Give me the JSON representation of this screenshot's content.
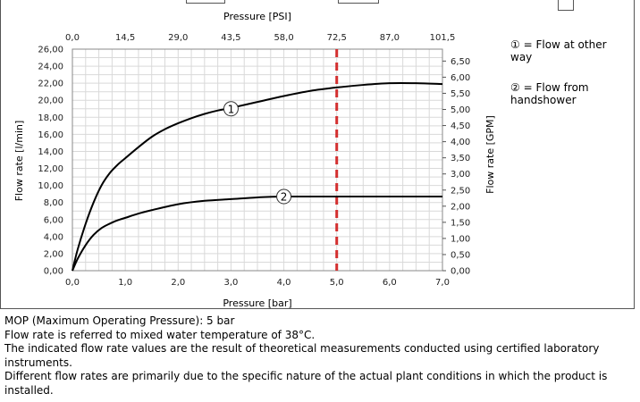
{
  "chart_data": {
    "type": "line",
    "top_axis": {
      "label": "Pressure [PSI]",
      "ticks": [
        "0,0",
        "14,5",
        "29,0",
        "43,5",
        "58,0",
        "72,5",
        "87,0",
        "101,5"
      ],
      "range": [
        0,
        101.5
      ]
    },
    "xlabel": "Pressure [bar]",
    "x_ticks": [
      "0,0",
      "1,0",
      "2,0",
      "3,0",
      "4,0",
      "5,0",
      "6,0",
      "7,0"
    ],
    "xlim": [
      0,
      7
    ],
    "ylabel": "Flow rate [l/min]",
    "y_ticks": [
      "0,00",
      "2,00",
      "4,00",
      "6,00",
      "8,00",
      "10,00",
      "12,00",
      "14,00",
      "16,00",
      "18,00",
      "20,00",
      "22,00",
      "24,00",
      "26,00"
    ],
    "ylim": [
      0,
      26
    ],
    "y2label": "Flow rate [GPM]",
    "y2_ticks": [
      "0,00",
      "0,50",
      "1,00",
      "1,50",
      "2,00",
      "2,50",
      "3,00",
      "3,50",
      "4,00",
      "4,50",
      "5,00",
      "5,50",
      "6,00",
      "6,50"
    ],
    "y2lim": [
      0,
      6.87
    ],
    "grid": true,
    "series": [
      {
        "marker": "①",
        "color": "#000000",
        "marker_at": [
          3.0,
          19.0
        ],
        "x": [
          0,
          0.1,
          0.25,
          0.4,
          0.55,
          0.7,
          0.85,
          1.0,
          1.25,
          1.5,
          1.75,
          2.0,
          2.25,
          2.5,
          2.75,
          3.0,
          3.5,
          4.0,
          4.5,
          5.0,
          5.5,
          6.0,
          6.5,
          7.0
        ],
        "y": [
          0,
          2.5,
          5.5,
          8.0,
          10.0,
          11.4,
          12.4,
          13.2,
          14.5,
          15.7,
          16.6,
          17.3,
          17.9,
          18.4,
          18.8,
          19.1,
          19.8,
          20.5,
          21.1,
          21.5,
          21.8,
          22.0,
          22.0,
          21.9
        ]
      },
      {
        "marker": "②",
        "color": "#000000",
        "marker_at": [
          4.0,
          8.7
        ],
        "x": [
          0,
          0.1,
          0.25,
          0.4,
          0.55,
          0.7,
          0.85,
          1.0,
          1.25,
          1.5,
          2.0,
          2.5,
          3.0,
          3.5,
          4.0,
          5.0,
          6.0,
          7.0
        ],
        "y": [
          0,
          1.4,
          3.0,
          4.2,
          5.0,
          5.5,
          5.9,
          6.2,
          6.7,
          7.1,
          7.8,
          8.2,
          8.4,
          8.6,
          8.7,
          8.7,
          8.7,
          8.7
        ]
      }
    ],
    "reference_line": {
      "x": 5.0,
      "color": "#d32f2f",
      "style": "dashed"
    }
  },
  "legend": {
    "item1_marker": "①",
    "item1_text": "= Flow at other way",
    "item2_marker": "②",
    "item2_text": "= Flow from handshower"
  },
  "notes": [
    "MOP (Maximum Operating Pressure): 5 bar",
    "Flow rate is referred to mixed water temperature of 38°C.",
    "The indicated flow rate values are the result of theoretical measurements conducted using certified laboratory instruments.",
    "Different flow rates are primarily due to the specific nature of the actual plant conditions in which the product is installed."
  ]
}
